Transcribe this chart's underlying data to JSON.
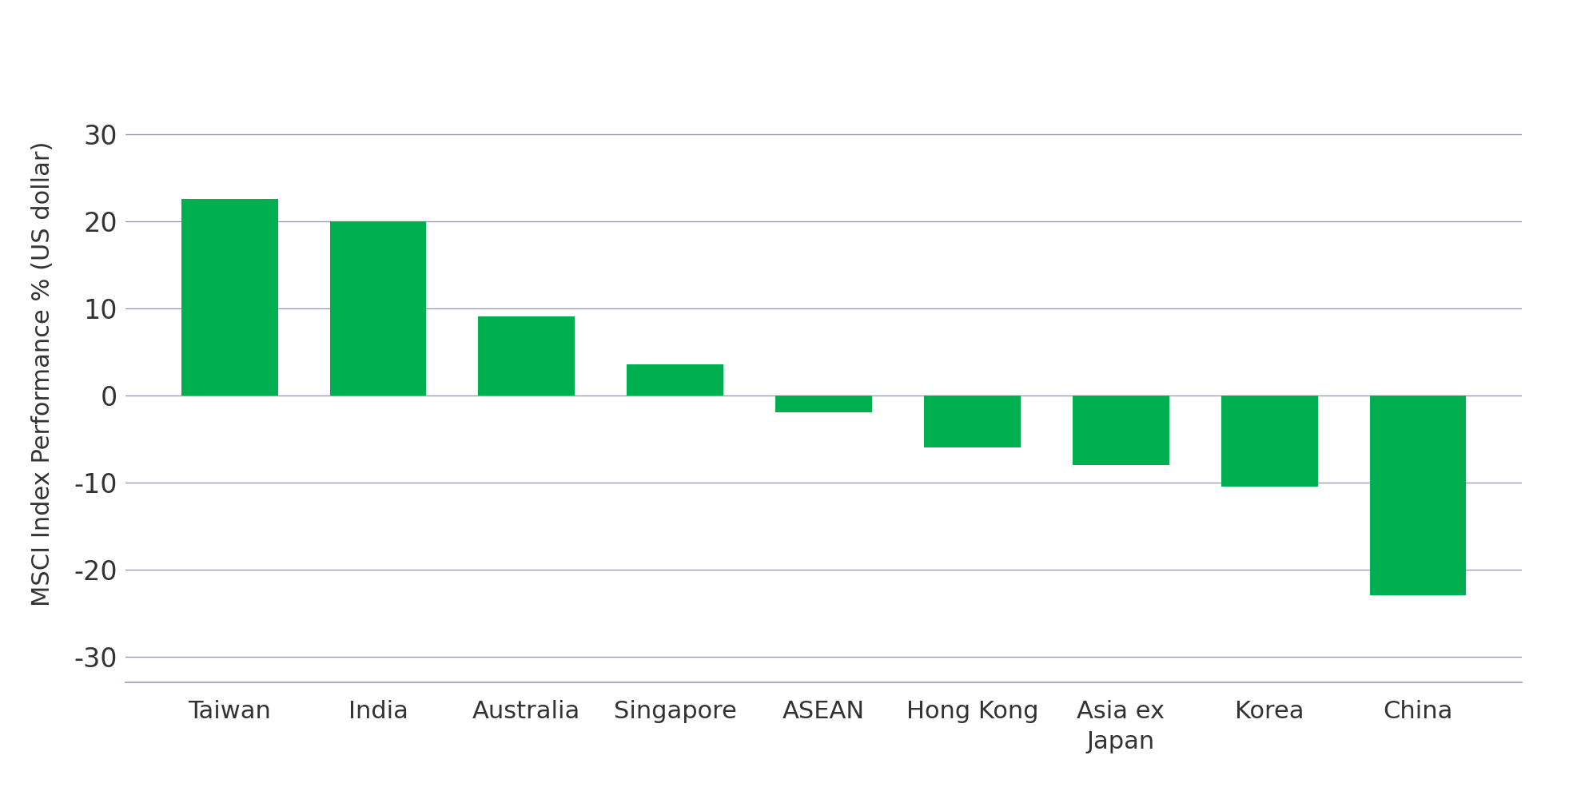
{
  "categories": [
    "Taiwan",
    "India",
    "Australia",
    "Singapore",
    "ASEAN",
    "Hong Kong",
    "Asia ex\nJapan",
    "Korea",
    "China"
  ],
  "values": [
    22.5,
    20.0,
    9.0,
    3.5,
    -2.0,
    -6.0,
    -8.0,
    -10.5,
    -23.0
  ],
  "bar_color": "#00B050",
  "ylabel": "MSCI Index Performance % (US dollar)",
  "ylim": [
    -33,
    38
  ],
  "yticks": [
    -30,
    -20,
    -10,
    0,
    10,
    20,
    30
  ],
  "background_color": "#FFFFFF",
  "grid_color": "#9999BB",
  "tick_color": "#333333",
  "bar_width": 0.65
}
